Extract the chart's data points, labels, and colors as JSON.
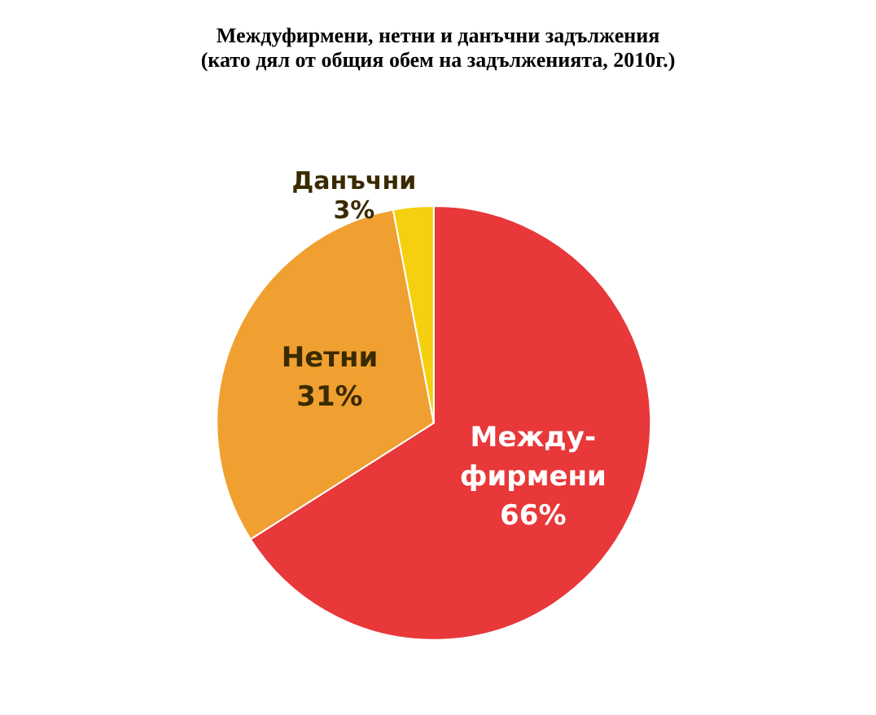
{
  "chart_data": {
    "type": "pie",
    "title": "Междуфирмени, нетни и данъчни задължения",
    "subtitle": "(като дял от общия обем на задълженията, 2010г.)",
    "categories": [
      "Между-фирмени",
      "Нетни",
      "Данъчни"
    ],
    "values": [
      66,
      31,
      3
    ],
    "colors": [
      "#e8383a",
      "#f0a030",
      "#f5d010"
    ],
    "value_labels": [
      "66%",
      "31%",
      "3%"
    ],
    "legend": false
  }
}
